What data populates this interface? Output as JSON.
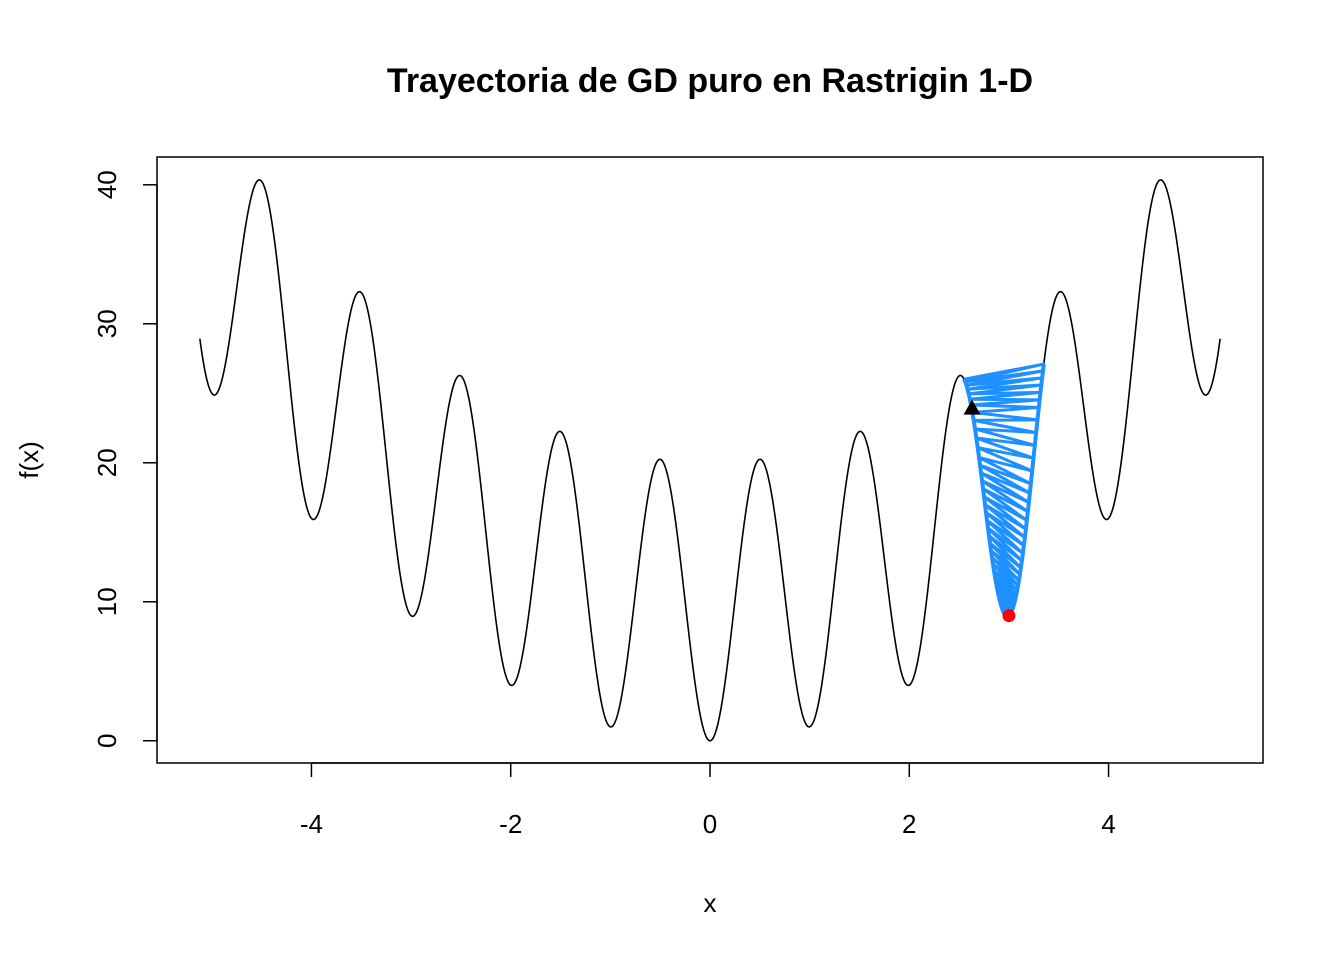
{
  "chart_data": {
    "type": "line",
    "title": "Trayectoria de GD puro en Rastrigin 1-D",
    "xlabel": "x",
    "ylabel": "f(x)",
    "xlim": [
      -5.55,
      5.55
    ],
    "ylim": [
      -1.6,
      42.0
    ],
    "x_ticks": [
      -4,
      -2,
      0,
      2,
      4
    ],
    "y_ticks": [
      0,
      10,
      20,
      30,
      40
    ],
    "grid": false,
    "function": {
      "name": "Rastrigin 1-D",
      "formula": "f(x) = 10 + x^2 - 10 cos(2 pi x)",
      "domain": [
        -5.12,
        5.12
      ],
      "color": "#000000"
    },
    "trajectory": {
      "color": "#1E90FF",
      "x_range_approx": [
        2.55,
        3.35
      ],
      "oscillation_bounds_x": [
        [
          2.55,
          3.35
        ],
        [
          2.62,
          3.3
        ],
        [
          2.7,
          3.22
        ],
        [
          2.76,
          3.16
        ],
        [
          2.82,
          3.1
        ],
        [
          2.88,
          3.05
        ],
        [
          2.93,
          3.02
        ],
        [
          2.97,
          3.0
        ]
      ]
    },
    "start_point": {
      "x": 2.63,
      "y": 23.9,
      "marker": "triangle",
      "color": "#000000"
    },
    "end_point": {
      "x": 3.0,
      "y": 9.0,
      "marker": "circle",
      "color": "#FF0000"
    }
  }
}
